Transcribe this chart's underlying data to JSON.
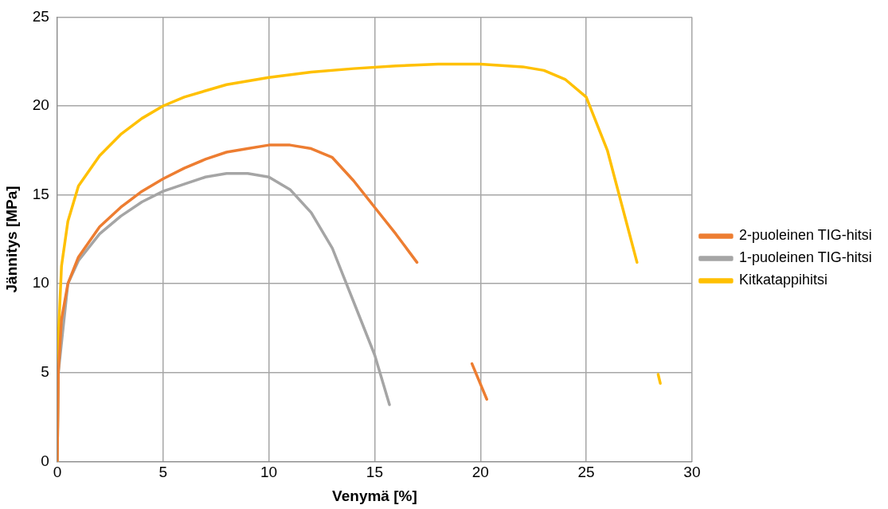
{
  "chart_data": {
    "type": "line",
    "xlabel": "Venymä [%]",
    "ylabel": "Jännitys [MPa]",
    "xlim": [
      0,
      30
    ],
    "xticks": [
      0,
      5,
      10,
      15,
      20,
      25,
      30
    ],
    "ylim": [
      0,
      25
    ],
    "yticks": [
      0,
      5,
      10,
      15,
      20,
      25
    ],
    "grid": true,
    "legend": "right",
    "marker": "none",
    "line_style": "solid",
    "series": [
      {
        "name": "2-puoleinen TIG-hitsi",
        "color": "#ed7d31",
        "x": [
          0,
          0.05,
          0.2,
          0.5,
          1,
          2,
          3,
          4,
          5,
          6,
          7,
          8,
          9,
          10,
          11,
          12,
          13,
          14,
          15,
          16,
          17,
          18,
          19.6,
          20.3
        ],
        "values": [
          0,
          5,
          8,
          10,
          11.5,
          13.2,
          14.3,
          15.2,
          15.9,
          16.5,
          17,
          17.4,
          17.6,
          17.8,
          17.8,
          17.6,
          17.1,
          15.8,
          14.3,
          12.8,
          11.2,
          null,
          5.5,
          3.5
        ]
      },
      {
        "name": "1-puoleinen TIG-hitsi",
        "color": "#a5a5a5",
        "x": [
          0,
          0.05,
          0.5,
          1,
          2,
          3,
          4,
          5,
          6,
          7,
          8,
          9,
          10,
          11,
          12,
          13,
          13.5,
          14,
          15,
          15.7
        ],
        "values": [
          0,
          5,
          10,
          11.3,
          12.8,
          13.8,
          14.6,
          15.2,
          15.6,
          16,
          16.2,
          16.2,
          16,
          15.3,
          14,
          12,
          10.5,
          9,
          6,
          3.2
        ]
      },
      {
        "name": "Kitkatappihitsi",
        "color": "#ffc000",
        "x": [
          0,
          0.05,
          0.2,
          0.5,
          1,
          2,
          3,
          4,
          5,
          6,
          8,
          10,
          12,
          14,
          16,
          18,
          20,
          22,
          23,
          24,
          25,
          26,
          27,
          27.4,
          28,
          28.4,
          28.5
        ],
        "values": [
          0,
          7,
          11,
          13.5,
          15.5,
          17.2,
          18.4,
          19.3,
          20,
          20.5,
          21.2,
          21.6,
          21.9,
          22.1,
          22.25,
          22.35,
          22.35,
          22.2,
          22,
          21.5,
          20.5,
          17.5,
          13,
          11.2,
          null,
          4.9,
          4.4
        ]
      }
    ]
  }
}
